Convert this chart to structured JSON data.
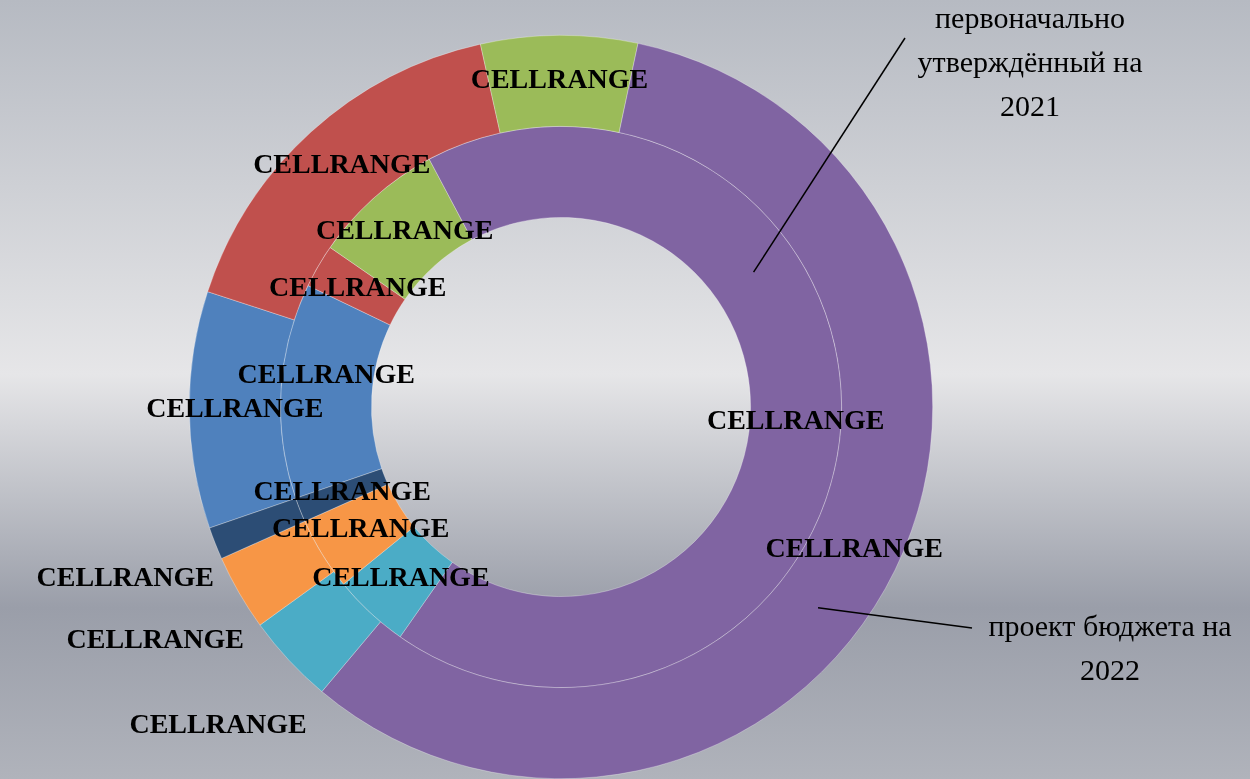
{
  "chart_data": {
    "type": "donut",
    "categories": [
      null,
      null,
      null,
      null,
      null,
      null,
      null
    ],
    "legend": false,
    "series": [
      {
        "name": "проект бюджета на 2022",
        "colors": [
          "#4f81bd",
          "#c0504d",
          "#9bbb59",
          "#8064a2",
          "#4bacc6",
          "#f79646",
          "#2c4d75"
        ],
        "values": [
          10.3,
          16.5,
          6.8,
          57.8,
          3.9,
          3.3,
          1.4
        ],
        "value_labels": [
          "CELLRANGE",
          "CELLRANGE",
          "CELLRANGE",
          "CELLRANGE",
          "CELLRANGE",
          "CELLRANGE",
          "CELLRANGE"
        ]
      },
      {
        "name": "первоначально утверждённый на 2021",
        "colors": [
          "#4f81bd",
          "#c0504d",
          "#9bbb59",
          "#8064a2",
          "#4bacc6",
          "#f79646",
          "#2c4d75"
        ],
        "values": [
          12.4,
          2.5,
          7.6,
          67.5,
          4.4,
          4.2,
          1.4
        ],
        "value_labels": [
          "CELLRANGE",
          "CELLRANGE",
          "CELLRANGE",
          "CELLRANGE",
          "CELLRANGE",
          "CELLRANGE",
          "CELLRANGE"
        ]
      }
    ]
  }
}
